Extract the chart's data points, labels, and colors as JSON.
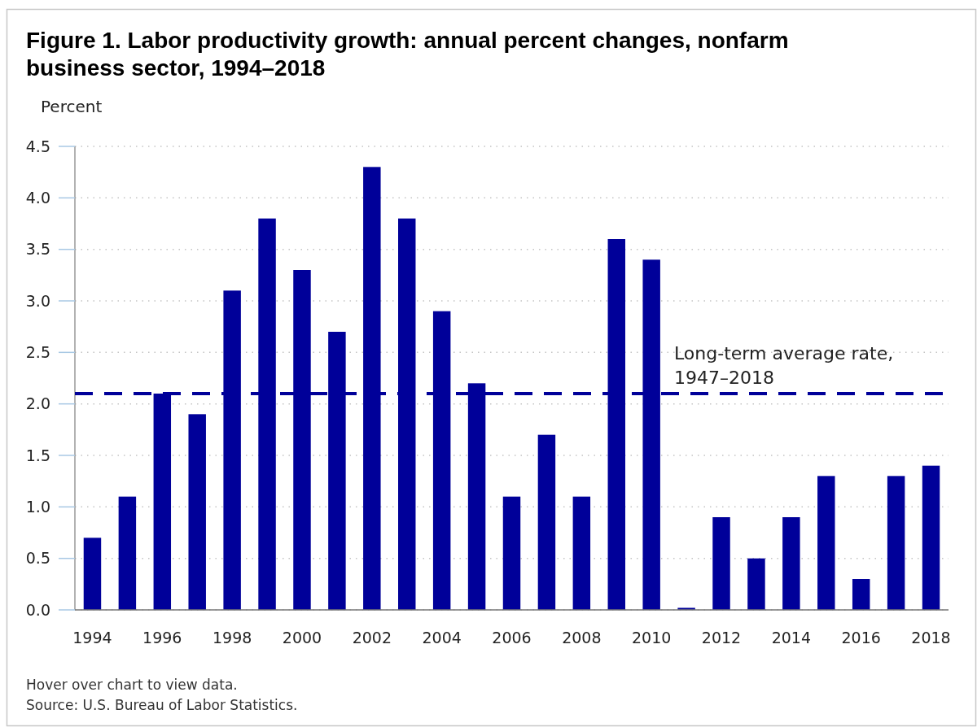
{
  "chart_data": {
    "type": "bar",
    "title": "Figure 1. Labor productivity growth: annual percent changes, nonfarm business sector, 1994–2018",
    "ylabel": "Percent",
    "categories": [
      "1994",
      null,
      "1996",
      null,
      "1998",
      null,
      "2000",
      null,
      "2002",
      null,
      "2004",
      null,
      "2006",
      null,
      "2008",
      null,
      "2010",
      null,
      "2012",
      null,
      "2014",
      null,
      "2016",
      null,
      "2018"
    ],
    "values": [
      0.7,
      1.1,
      2.1,
      1.9,
      3.1,
      3.8,
      3.3,
      2.7,
      4.3,
      3.8,
      2.9,
      2.2,
      1.1,
      1.7,
      1.1,
      3.6,
      3.4,
      0.02,
      0.9,
      0.5,
      0.9,
      1.3,
      0.3,
      1.3,
      1.4
    ],
    "color": "#000099",
    "ylim": [
      0,
      4.5
    ],
    "yticks": [
      {
        "value": 0,
        "label": "0.0"
      },
      0.5,
      {
        "value": 1,
        "label": "1.0"
      },
      1.5,
      {
        "value": 2,
        "label": "2.0"
      },
      2.5,
      {
        "value": 3,
        "label": "3.0"
      },
      3.5,
      {
        "value": 4,
        "label": "4.0"
      },
      4.5
    ],
    "grid": "y",
    "ref_lines": [
      {
        "axis": "y",
        "value": 2.1,
        "label": "Long-term average rate,\n1947–2018",
        "color": "#000099",
        "line_style": "dashed"
      }
    ],
    "annotations": [
      "Hover over chart to view data.",
      "Source: U.S. Bureau of Labor Statistics."
    ]
  }
}
